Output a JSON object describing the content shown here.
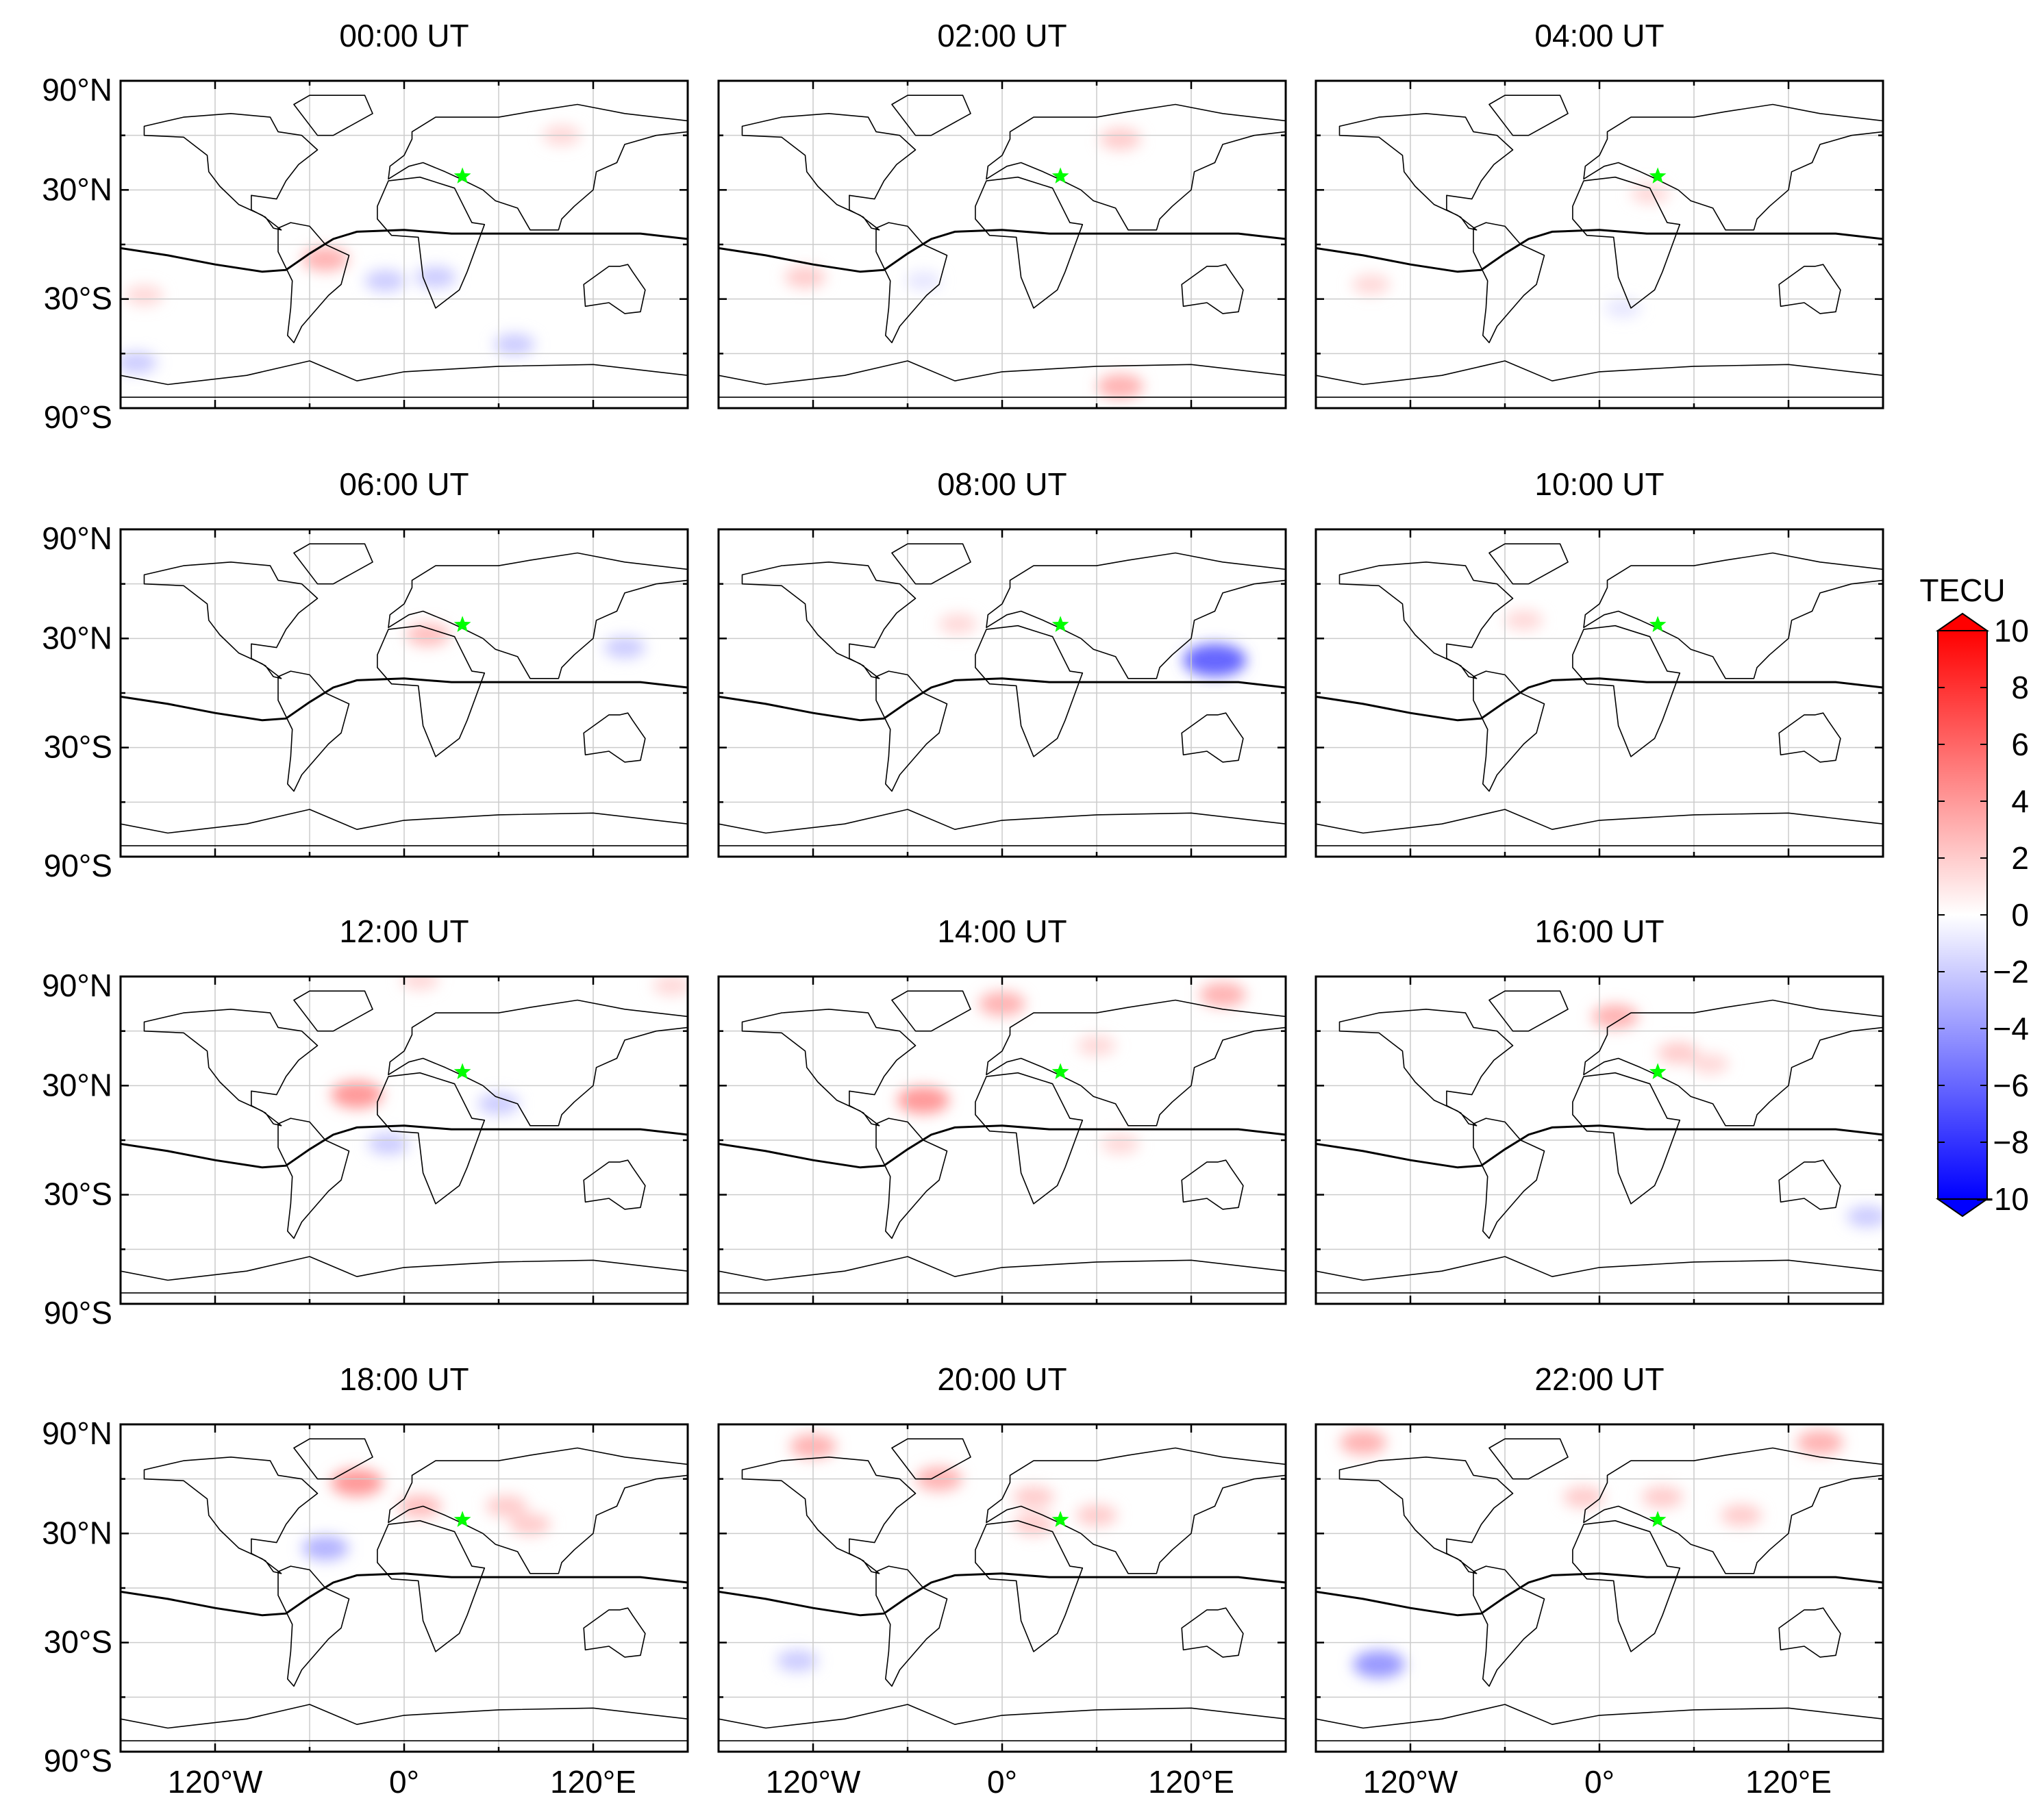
{
  "figure": {
    "panel_titles": [
      "00:00 UT",
      "02:00 UT",
      "04:00 UT",
      "06:00 UT",
      "08:00 UT",
      "10:00 UT",
      "12:00 UT",
      "14:00 UT",
      "16:00 UT",
      "18:00 UT",
      "20:00 UT",
      "22:00 UT"
    ],
    "lat_tick_labels": [
      "90°N",
      "30°N",
      "30°S",
      "90°S"
    ],
    "lon_tick_labels": [
      "120°W",
      "0°",
      "120°E"
    ],
    "colorbar": {
      "title": "TECU",
      "tick_labels": [
        "10",
        "8",
        "6",
        "4",
        "2",
        "0",
        "−2",
        "−4",
        "−6",
        "−8",
        "−10"
      ]
    }
  },
  "chart_data": {
    "type": "heatmap",
    "description_free": true,
    "x_range_deg": [
      -180,
      180
    ],
    "y_range_deg": [
      -90,
      90
    ],
    "color_range": [
      -10,
      10
    ],
    "colors": {
      "positive": "#ff0000",
      "negative": "#0000ff",
      "zero": "#ffffff",
      "marker": "#00ff00",
      "grid": "#cccccc"
    },
    "marker": {
      "lon": 37,
      "lat": 37.5
    },
    "equator_line": [
      [
        -180,
        -2
      ],
      [
        -150,
        -6
      ],
      [
        -120,
        -11
      ],
      [
        -90,
        -15
      ],
      [
        -75,
        -14
      ],
      [
        -60,
        -5
      ],
      [
        -45,
        3
      ],
      [
        -30,
        7
      ],
      [
        0,
        8
      ],
      [
        30,
        6
      ],
      [
        60,
        6
      ],
      [
        90,
        6
      ],
      [
        120,
        6
      ],
      [
        150,
        6
      ],
      [
        180,
        3
      ]
    ],
    "panels": [
      {
        "time": "00:00 UT",
        "anomalies": [
          {
            "lon": -50,
            "lat": -8,
            "v": 3
          },
          {
            "lon": -12,
            "lat": -20,
            "v": -2
          },
          {
            "lon": 20,
            "lat": -18,
            "v": -2
          },
          {
            "lon": 100,
            "lat": 60,
            "v": 1.5
          },
          {
            "lon": 70,
            "lat": -55,
            "v": -2
          },
          {
            "lon": -170,
            "lat": -65,
            "v": -2
          },
          {
            "lon": -165,
            "lat": -28,
            "v": 1.5
          }
        ]
      },
      {
        "time": "02:00 UT",
        "anomalies": [
          {
            "lon": 75,
            "lat": -78,
            "v": 3
          },
          {
            "lon": 75,
            "lat": 58,
            "v": 2
          },
          {
            "lon": -125,
            "lat": -18,
            "v": 2
          },
          {
            "lon": -50,
            "lat": -20,
            "v": -1
          }
        ]
      },
      {
        "time": "04:00 UT",
        "anomalies": [
          {
            "lon": 32,
            "lat": 28,
            "v": 1.5
          },
          {
            "lon": -145,
            "lat": -22,
            "v": 1.5
          },
          {
            "lon": 15,
            "lat": -35,
            "v": -1
          }
        ]
      },
      {
        "time": "06:00 UT",
        "anomalies": [
          {
            "lon": 15,
            "lat": 32,
            "v": 2.5
          },
          {
            "lon": 140,
            "lat": 25,
            "v": -2
          }
        ]
      },
      {
        "time": "08:00 UT",
        "anomalies": [
          {
            "lon": -28,
            "lat": 38,
            "v": 1.5
          },
          {
            "lon": 135,
            "lat": 18,
            "v": -6
          }
        ]
      },
      {
        "time": "10:00 UT",
        "anomalies": [
          {
            "lon": -48,
            "lat": 40,
            "v": 1.5
          }
        ]
      },
      {
        "time": "12:00 UT",
        "anomalies": [
          {
            "lon": -30,
            "lat": 25,
            "v": 4
          },
          {
            "lon": 10,
            "lat": 88,
            "v": 1.5
          },
          {
            "lon": 170,
            "lat": 85,
            "v": 1.5
          },
          {
            "lon": -10,
            "lat": -2,
            "v": -2
          },
          {
            "lon": 60,
            "lat": 20,
            "v": -2
          }
        ]
      },
      {
        "time": "14:00 UT",
        "anomalies": [
          {
            "lon": 0,
            "lat": 75,
            "v": 3
          },
          {
            "lon": 140,
            "lat": 80,
            "v": 3
          },
          {
            "lon": -50,
            "lat": 22,
            "v": 4
          },
          {
            "lon": 75,
            "lat": -2,
            "v": 1.5
          },
          {
            "lon": 60,
            "lat": 52,
            "v": 1.5
          }
        ]
      },
      {
        "time": "16:00 UT",
        "anomalies": [
          {
            "lon": 10,
            "lat": 68,
            "v": 3
          },
          {
            "lon": 50,
            "lat": 48,
            "v": 2
          },
          {
            "lon": 70,
            "lat": 42,
            "v": 1.5
          },
          {
            "lon": 170,
            "lat": -42,
            "v": -2
          }
        ]
      },
      {
        "time": "18:00 UT",
        "anomalies": [
          {
            "lon": -30,
            "lat": 58,
            "v": 4
          },
          {
            "lon": 10,
            "lat": 45,
            "v": 2.5
          },
          {
            "lon": 65,
            "lat": 45,
            "v": 2
          },
          {
            "lon": 80,
            "lat": 35,
            "v": 2
          },
          {
            "lon": -50,
            "lat": 22,
            "v": -3
          }
        ]
      },
      {
        "time": "20:00 UT",
        "anomalies": [
          {
            "lon": -120,
            "lat": 78,
            "v": 3
          },
          {
            "lon": -40,
            "lat": 60,
            "v": 3
          },
          {
            "lon": 20,
            "lat": 50,
            "v": 2
          },
          {
            "lon": 60,
            "lat": 40,
            "v": 2
          },
          {
            "lon": 20,
            "lat": 35,
            "v": 2
          },
          {
            "lon": -130,
            "lat": -40,
            "v": -2
          }
        ]
      },
      {
        "time": "22:00 UT",
        "anomalies": [
          {
            "lon": -150,
            "lat": 80,
            "v": 3
          },
          {
            "lon": 140,
            "lat": 80,
            "v": 3
          },
          {
            "lon": -10,
            "lat": 50,
            "v": 2
          },
          {
            "lon": 40,
            "lat": 50,
            "v": 2
          },
          {
            "lon": 90,
            "lat": 40,
            "v": 2
          },
          {
            "lon": -140,
            "lat": -42,
            "v": -4
          }
        ]
      }
    ]
  }
}
